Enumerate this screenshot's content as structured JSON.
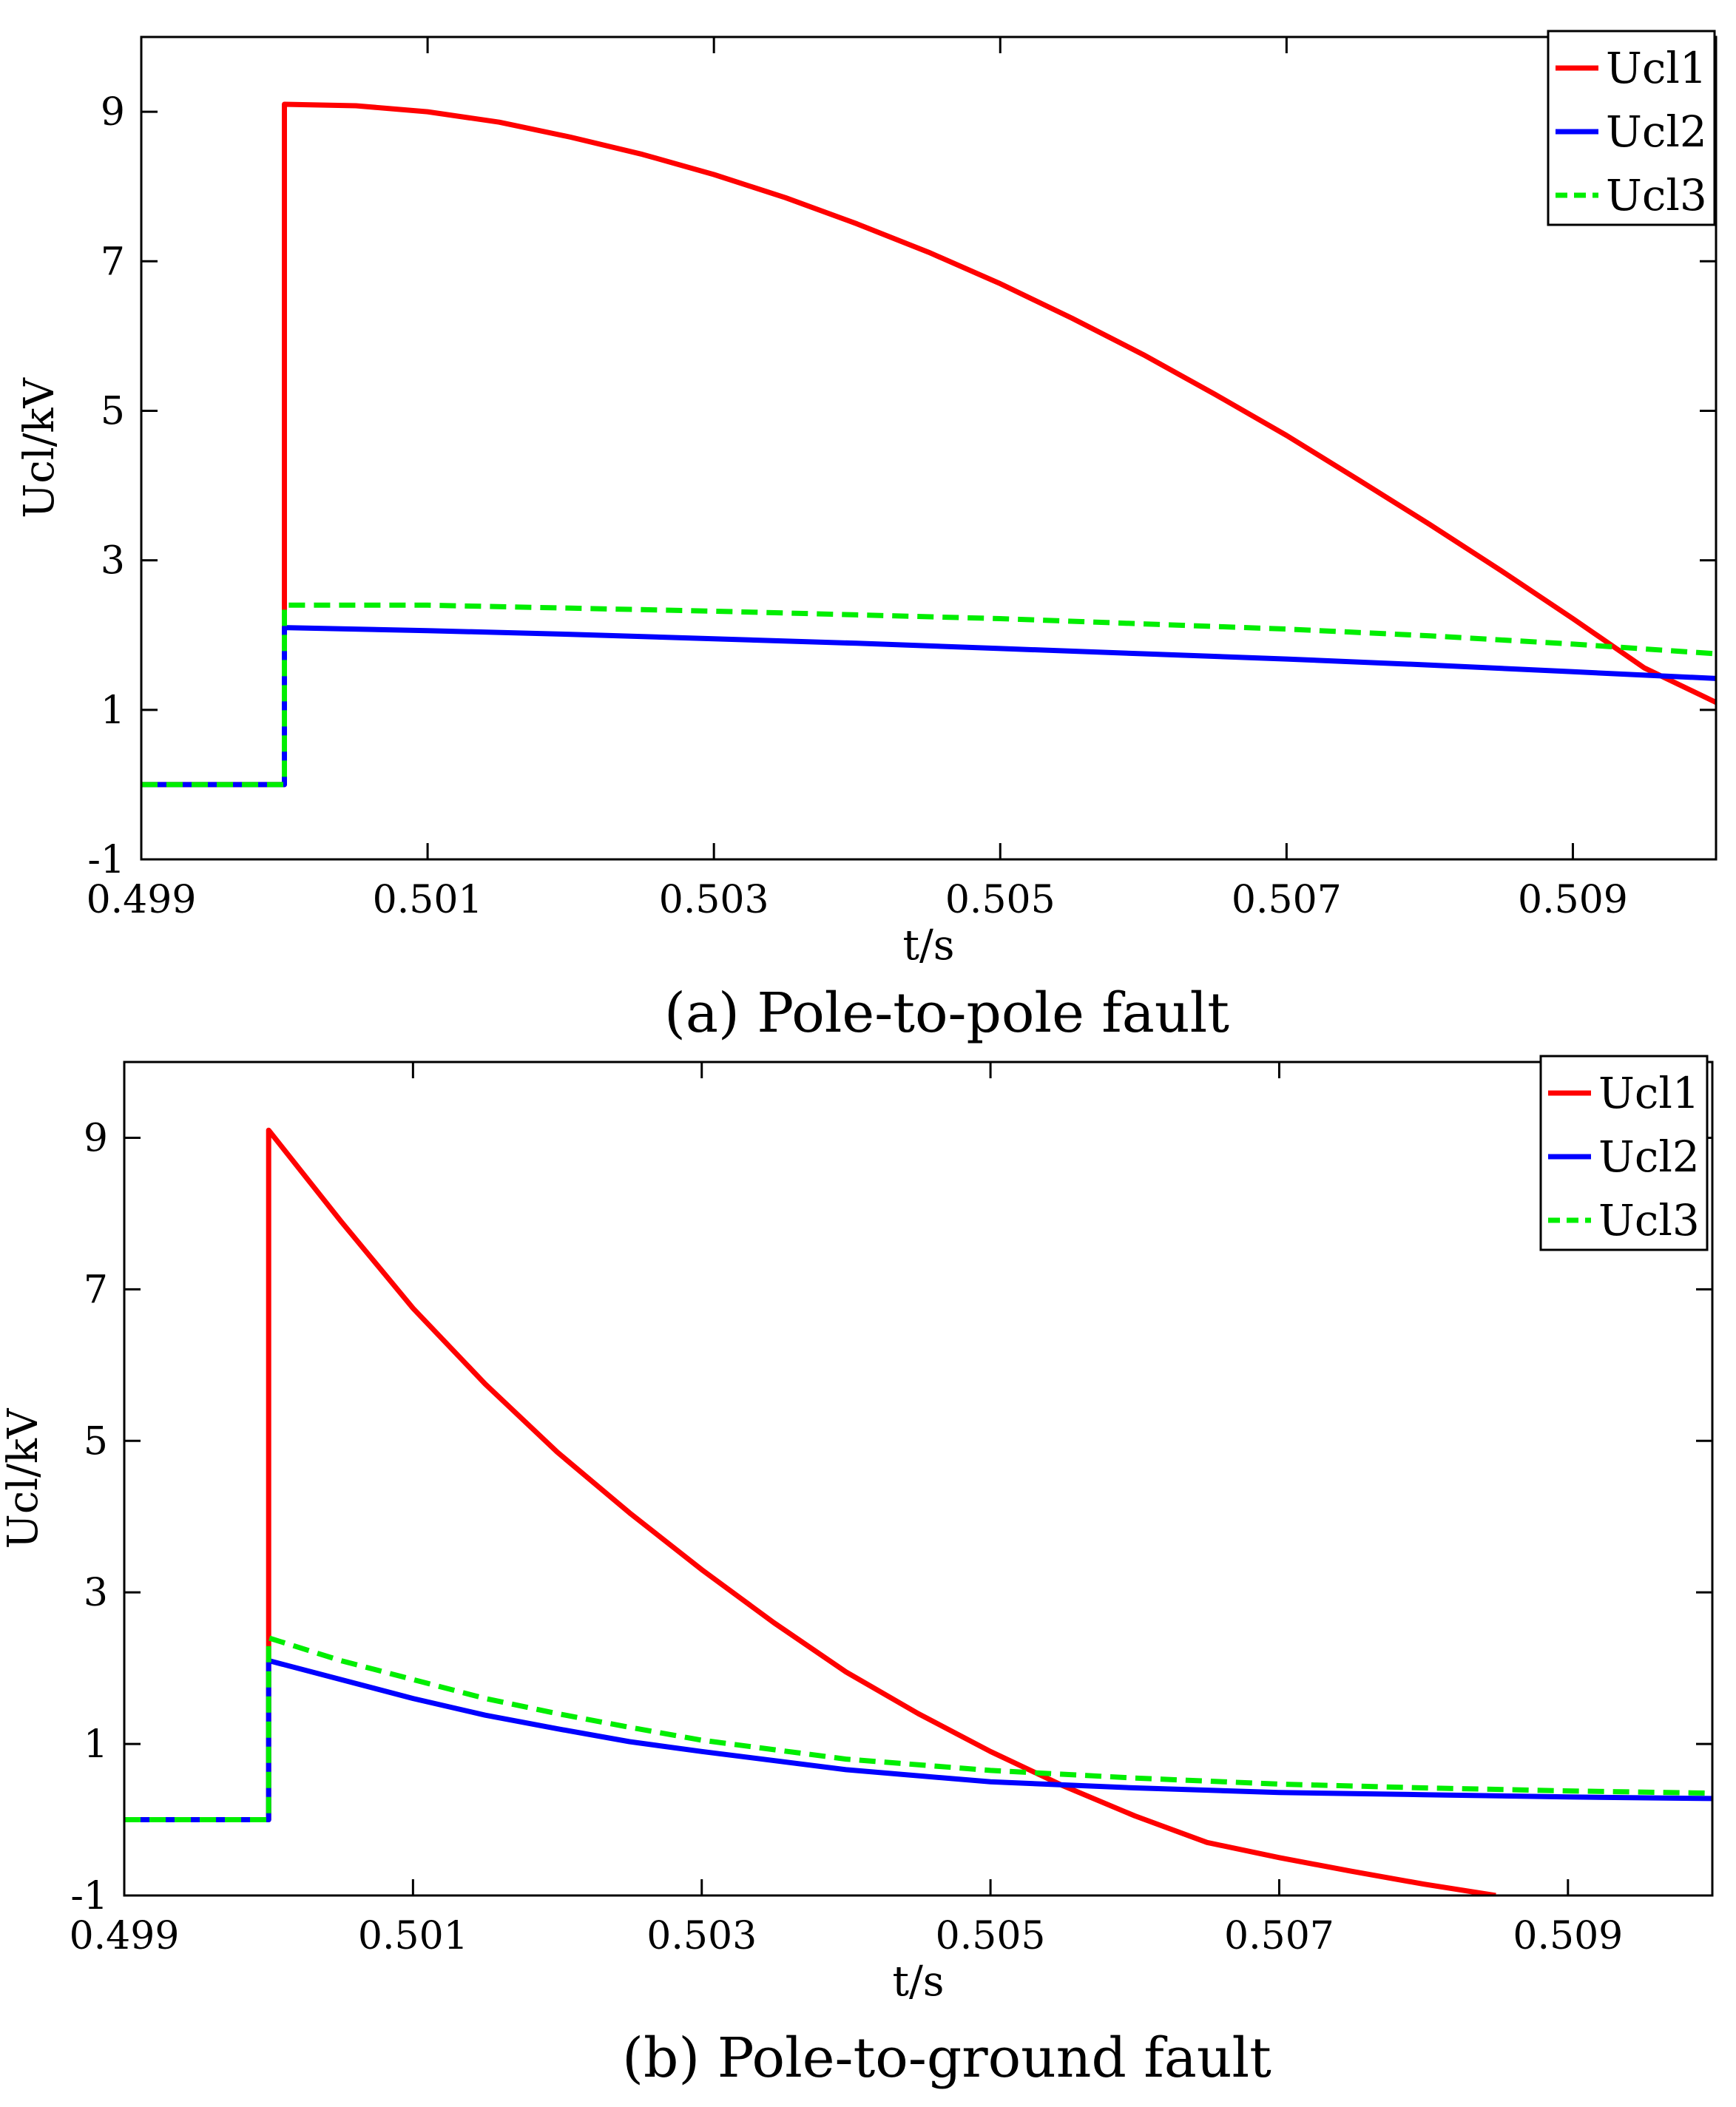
{
  "figure": {
    "colors": {
      "Ucl1": "#ff0000",
      "Ucl2": "#0000ff",
      "Ucl3": "#00ee00",
      "axes": "#000000"
    }
  },
  "chart_data": [
    {
      "type": "line",
      "panel": "a",
      "caption": "(a)  Pole-to-pole fault",
      "xlabel": "t/s",
      "ylabel": "Ucl/kV",
      "xlim": [
        0.499,
        0.51
      ],
      "ylim": [
        -1,
        10
      ],
      "xticks": [
        0.499,
        0.501,
        0.503,
        0.505,
        0.507,
        0.509
      ],
      "xtick_labels": [
        "0.499",
        "0.501",
        "0.503",
        "0.505",
        "0.507",
        "0.509"
      ],
      "yticks": [
        -1,
        1,
        3,
        5,
        7,
        9
      ],
      "ytick_labels": [
        "-1",
        "1",
        "3",
        "5",
        "7",
        "9"
      ],
      "grid": false,
      "legend_position": "top-right",
      "series": [
        {
          "name": "Ucl1",
          "label": "Ucl1",
          "color": "#ff0000",
          "dash": "solid",
          "x": [
            0.499,
            0.5,
            0.5,
            0.5005,
            0.501,
            0.5015,
            0.502,
            0.5025,
            0.503,
            0.5035,
            0.504,
            0.5045,
            0.505,
            0.5055,
            0.506,
            0.5065,
            0.507,
            0.5075,
            0.508,
            0.5085,
            0.509,
            0.5095,
            0.51
          ],
          "y": [
            0,
            0,
            9.1,
            9.08,
            9.0,
            8.86,
            8.66,
            8.43,
            8.16,
            7.85,
            7.5,
            7.12,
            6.7,
            6.24,
            5.75,
            5.22,
            4.67,
            4.08,
            3.48,
            2.86,
            2.22,
            1.56,
            1.1
          ]
        },
        {
          "name": "Ucl2",
          "label": "Ucl2",
          "color": "#0000ff",
          "dash": "solid",
          "x": [
            0.499,
            0.5,
            0.5,
            0.501,
            0.502,
            0.503,
            0.504,
            0.505,
            0.506,
            0.507,
            0.508,
            0.509,
            0.51
          ],
          "y": [
            0,
            0,
            2.1,
            2.06,
            2.01,
            1.95,
            1.89,
            1.82,
            1.75,
            1.68,
            1.6,
            1.51,
            1.42
          ]
        },
        {
          "name": "Ucl3",
          "label": "Ucl3",
          "color": "#00ee00",
          "dash": "dashed",
          "x": [
            0.499,
            0.5,
            0.5,
            0.501,
            0.502,
            0.503,
            0.504,
            0.505,
            0.506,
            0.507,
            0.508,
            0.509,
            0.51
          ],
          "y": [
            0,
            0,
            2.4,
            2.4,
            2.36,
            2.32,
            2.27,
            2.22,
            2.15,
            2.08,
            1.99,
            1.88,
            1.75
          ]
        }
      ]
    },
    {
      "type": "line",
      "panel": "b",
      "caption": "(b)  Pole-to-ground fault",
      "xlabel": "t/s",
      "ylabel": "Ucl/kV",
      "xlim": [
        0.499,
        0.51
      ],
      "ylim": [
        -1,
        10
      ],
      "xticks": [
        0.499,
        0.501,
        0.503,
        0.505,
        0.507,
        0.509
      ],
      "xtick_labels": [
        "0.499",
        "0.501",
        "0.503",
        "0.505",
        "0.507",
        "0.509"
      ],
      "yticks": [
        -1,
        1,
        3,
        5,
        7,
        9
      ],
      "ytick_labels": [
        "-1",
        "1",
        "3",
        "5",
        "7",
        "9"
      ],
      "grid": false,
      "legend_position": "top-right",
      "series": [
        {
          "name": "Ucl1",
          "label": "Ucl1",
          "color": "#ff0000",
          "dash": "solid",
          "x": [
            0.499,
            0.5,
            0.5,
            0.5005,
            0.501,
            0.5015,
            0.502,
            0.5025,
            0.503,
            0.5035,
            0.504,
            0.5045,
            0.505,
            0.5055,
            0.506,
            0.5065,
            0.507,
            0.5075,
            0.508,
            0.5085
          ],
          "y": [
            0,
            0,
            9.1,
            7.9,
            6.75,
            5.75,
            4.85,
            4.05,
            3.3,
            2.6,
            1.95,
            1.4,
            0.9,
            0.45,
            0.05,
            -0.3,
            -0.5,
            -0.68,
            -0.85,
            -1.0
          ]
        },
        {
          "name": "Ucl2",
          "label": "Ucl2",
          "color": "#0000ff",
          "dash": "solid",
          "x": [
            0.499,
            0.5,
            0.5,
            0.5005,
            0.501,
            0.5015,
            0.502,
            0.5025,
            0.503,
            0.504,
            0.505,
            0.506,
            0.507,
            0.508,
            0.509,
            0.51
          ],
          "y": [
            0,
            0,
            2.1,
            1.85,
            1.6,
            1.38,
            1.2,
            1.03,
            0.9,
            0.66,
            0.5,
            0.42,
            0.36,
            0.33,
            0.3,
            0.28
          ]
        },
        {
          "name": "Ucl3",
          "label": "Ucl3",
          "color": "#00ee00",
          "dash": "dashed",
          "x": [
            0.499,
            0.5,
            0.5,
            0.5005,
            0.501,
            0.5015,
            0.502,
            0.5025,
            0.503,
            0.504,
            0.505,
            0.506,
            0.507,
            0.508,
            0.509,
            0.51
          ],
          "y": [
            0,
            0,
            2.4,
            2.1,
            1.85,
            1.6,
            1.4,
            1.22,
            1.05,
            0.8,
            0.65,
            0.55,
            0.47,
            0.42,
            0.38,
            0.35
          ]
        }
      ]
    }
  ]
}
